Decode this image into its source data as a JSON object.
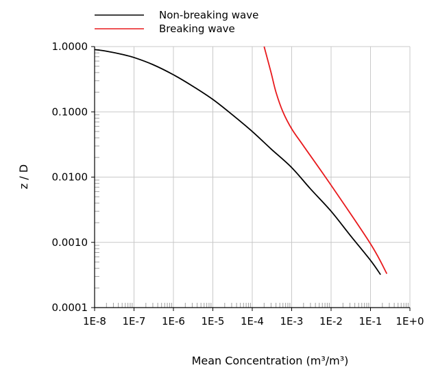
{
  "chart_data": {
    "type": "line",
    "xlabel": "Mean Concentration (m³/m³)",
    "ylabel": "z / D",
    "x_scale": "log",
    "y_scale": "log",
    "xlim": [
      1e-08,
      1
    ],
    "ylim": [
      0.0001,
      1
    ],
    "grid": true,
    "legend": "top-left",
    "x_ticks": [
      1e-08,
      1e-07,
      1e-06,
      1e-05,
      0.0001,
      0.001,
      0.01,
      0.1,
      1
    ],
    "x_tick_labels": [
      "1E-8",
      "1E-7",
      "1E-6",
      "1E-5",
      "1E-4",
      "1E-3",
      "1E-2",
      "1E-1",
      "1E+0"
    ],
    "y_ticks": [
      0.0001,
      0.001,
      0.01,
      0.1,
      1
    ],
    "y_tick_labels": [
      "0.0001",
      "0.0010",
      "0.0100",
      "0.1000",
      "1.0000"
    ],
    "series": [
      {
        "name": "Non-breaking wave",
        "color": "#000000",
        "x": [
          1e-08,
          2e-08,
          5e-08,
          1e-07,
          3e-07,
          1e-06,
          3e-06,
          1e-05,
          3e-05,
          0.0001,
          0.0003,
          0.001,
          0.003,
          0.01,
          0.03,
          0.1,
          0.18
        ],
        "y": [
          0.9,
          0.85,
          0.76,
          0.68,
          0.53,
          0.37,
          0.25,
          0.155,
          0.092,
          0.05,
          0.027,
          0.014,
          0.0066,
          0.003,
          0.0013,
          0.00053,
          0.00032
        ]
      },
      {
        "name": "Breaking wave",
        "color": "#e8191c",
        "x": [
          0.0002,
          0.0003,
          0.0004,
          0.0006,
          0.001,
          0.002,
          0.01,
          0.1,
          0.26
        ],
        "y": [
          1.0,
          0.4,
          0.2,
          0.1,
          0.055,
          0.03,
          0.0075,
          0.00095,
          0.00033
        ]
      }
    ]
  }
}
